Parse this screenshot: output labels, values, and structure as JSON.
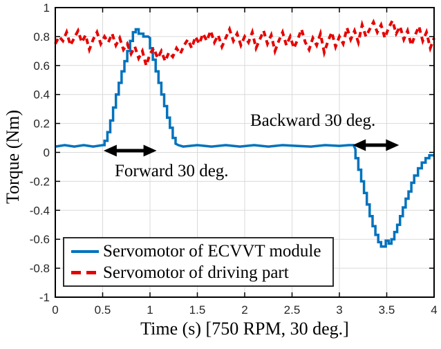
{
  "figure": {
    "ylabel": "Torque (Nm)",
    "xlabel": "Time (s) [750 RPM, 30 deg.]"
  },
  "annotations": {
    "forward": "Forward 30 deg.",
    "backward": "Backward 30 deg."
  },
  "legend": {
    "items": [
      {
        "label": "Servomotor of ECVVT module",
        "color": "#0072BD",
        "style": "solid"
      },
      {
        "label": "Servomotor of driving part",
        "color": "#E60000",
        "style": "dashed"
      }
    ]
  },
  "chart_data": {
    "type": "line",
    "title": "",
    "xlabel": "Time (s) [750 RPM, 30 deg.]",
    "ylabel": "Torque (Nm)",
    "xlim": [
      0,
      4
    ],
    "ylim": [
      -1,
      1
    ],
    "xticks": [
      0,
      0.5,
      1,
      1.5,
      2,
      2.5,
      3,
      3.5,
      4
    ],
    "xtick_labels": [
      "0",
      "0.5",
      "1",
      "1.5",
      "2",
      "2.5",
      "3",
      "3.5",
      "4"
    ],
    "yticks": [
      -1,
      -0.8,
      -0.6,
      -0.4,
      -0.2,
      0,
      0.2,
      0.4,
      0.6,
      0.8,
      1
    ],
    "ytick_labels": [
      "-1",
      "-0.8",
      "-0.6",
      "-0.4",
      "-0.2",
      "0",
      "0.2",
      "0.4",
      "0.6",
      "0.8",
      "1"
    ],
    "grid": true,
    "legend_position": "lower-left",
    "style": {
      "blue": "#0072BD",
      "red": "#E60000",
      "grid_color": "#d9d9d9",
      "axis_color": "#000000",
      "tick_text_color": "#262626",
      "annotation_arrow_color": "#000000"
    },
    "arrows": [
      {
        "name": "forward-range-arrow",
        "x1": 0.51,
        "x2": 1.07,
        "y": 0.012
      },
      {
        "name": "backward-range-arrow",
        "x1": 3.14,
        "x2": 3.63,
        "y": 0.05
      }
    ],
    "series": [
      {
        "name": "Servomotor of ECVVT module",
        "color": "#0072BD",
        "style": "solid",
        "width": 3.5,
        "points": [
          [
            0,
            0.04
          ],
          [
            0.1,
            0.05
          ],
          [
            0.2,
            0.04
          ],
          [
            0.3,
            0.05
          ],
          [
            0.4,
            0.04
          ],
          [
            0.5,
            0.05
          ],
          [
            0.52,
            0.05
          ],
          [
            0.52,
            0.08
          ],
          [
            0.55,
            0.08
          ],
          [
            0.55,
            0.14
          ],
          [
            0.58,
            0.14
          ],
          [
            0.58,
            0.22
          ],
          [
            0.61,
            0.22
          ],
          [
            0.61,
            0.31
          ],
          [
            0.64,
            0.31
          ],
          [
            0.64,
            0.4
          ],
          [
            0.67,
            0.4
          ],
          [
            0.67,
            0.48
          ],
          [
            0.7,
            0.48
          ],
          [
            0.7,
            0.56
          ],
          [
            0.73,
            0.56
          ],
          [
            0.73,
            0.63
          ],
          [
            0.76,
            0.63
          ],
          [
            0.76,
            0.7
          ],
          [
            0.79,
            0.7
          ],
          [
            0.79,
            0.77
          ],
          [
            0.82,
            0.77
          ],
          [
            0.82,
            0.83
          ],
          [
            0.85,
            0.83
          ],
          [
            0.85,
            0.85
          ],
          [
            0.88,
            0.85
          ],
          [
            0.88,
            0.82
          ],
          [
            0.93,
            0.82
          ],
          [
            0.93,
            0.8
          ],
          [
            0.98,
            0.8
          ],
          [
            1.0,
            0.79
          ],
          [
            1.0,
            0.72
          ],
          [
            1.03,
            0.72
          ],
          [
            1.03,
            0.64
          ],
          [
            1.06,
            0.64
          ],
          [
            1.06,
            0.56
          ],
          [
            1.09,
            0.56
          ],
          [
            1.09,
            0.48
          ],
          [
            1.12,
            0.48
          ],
          [
            1.12,
            0.4
          ],
          [
            1.15,
            0.4
          ],
          [
            1.15,
            0.32
          ],
          [
            1.18,
            0.32
          ],
          [
            1.18,
            0.24
          ],
          [
            1.21,
            0.24
          ],
          [
            1.21,
            0.17
          ],
          [
            1.24,
            0.17
          ],
          [
            1.24,
            0.1
          ],
          [
            1.27,
            0.1
          ],
          [
            1.27,
            0.06
          ],
          [
            1.3,
            0.05
          ],
          [
            1.35,
            0.04
          ],
          [
            1.5,
            0.05
          ],
          [
            1.65,
            0.04
          ],
          [
            1.8,
            0.05
          ],
          [
            1.95,
            0.04
          ],
          [
            2.1,
            0.05
          ],
          [
            2.25,
            0.04
          ],
          [
            2.4,
            0.05
          ],
          [
            2.55,
            0.045
          ],
          [
            2.7,
            0.04
          ],
          [
            2.85,
            0.05
          ],
          [
            3.0,
            0.045
          ],
          [
            3.1,
            0.05
          ],
          [
            3.15,
            0.05
          ],
          [
            3.17,
            0.02
          ],
          [
            3.17,
            -0.04
          ],
          [
            3.2,
            -0.04
          ],
          [
            3.2,
            -0.12
          ],
          [
            3.23,
            -0.12
          ],
          [
            3.23,
            -0.2
          ],
          [
            3.26,
            -0.2
          ],
          [
            3.26,
            -0.28
          ],
          [
            3.29,
            -0.28
          ],
          [
            3.29,
            -0.36
          ],
          [
            3.32,
            -0.36
          ],
          [
            3.32,
            -0.44
          ],
          [
            3.35,
            -0.44
          ],
          [
            3.35,
            -0.51
          ],
          [
            3.38,
            -0.51
          ],
          [
            3.38,
            -0.57
          ],
          [
            3.41,
            -0.57
          ],
          [
            3.41,
            -0.62
          ],
          [
            3.44,
            -0.62
          ],
          [
            3.44,
            -0.65
          ],
          [
            3.49,
            -0.65
          ],
          [
            3.49,
            -0.61
          ],
          [
            3.52,
            -0.61
          ],
          [
            3.52,
            -0.63
          ],
          [
            3.55,
            -0.63
          ],
          [
            3.55,
            -0.6
          ],
          [
            3.58,
            -0.6
          ],
          [
            3.58,
            -0.55
          ],
          [
            3.61,
            -0.55
          ],
          [
            3.61,
            -0.5
          ],
          [
            3.64,
            -0.5
          ],
          [
            3.64,
            -0.44
          ],
          [
            3.67,
            -0.44
          ],
          [
            3.67,
            -0.38
          ],
          [
            3.7,
            -0.38
          ],
          [
            3.7,
            -0.32
          ],
          [
            3.73,
            -0.32
          ],
          [
            3.73,
            -0.27
          ],
          [
            3.76,
            -0.27
          ],
          [
            3.76,
            -0.21
          ],
          [
            3.79,
            -0.21
          ],
          [
            3.79,
            -0.16
          ],
          [
            3.83,
            -0.16
          ],
          [
            3.83,
            -0.11
          ],
          [
            3.87,
            -0.11
          ],
          [
            3.87,
            -0.07
          ],
          [
            3.91,
            -0.07
          ],
          [
            3.91,
            -0.04
          ],
          [
            3.95,
            -0.04
          ],
          [
            3.95,
            -0.02
          ],
          [
            4.0,
            -0.02
          ]
        ]
      },
      {
        "name": "Servomotor of driving part",
        "color": "#E60000",
        "style": "dashed",
        "width": 4,
        "x_start": 0,
        "x_step": 0.04,
        "values": [
          0.75,
          0.8,
          0.77,
          0.83,
          0.74,
          0.79,
          0.84,
          0.76,
          0.81,
          0.71,
          0.78,
          0.83,
          0.75,
          0.8,
          0.76,
          0.82,
          0.74,
          0.79,
          0.71,
          0.75,
          0.68,
          0.73,
          0.65,
          0.7,
          0.6,
          0.68,
          0.72,
          0.65,
          0.7,
          0.63,
          0.69,
          0.66,
          0.72,
          0.68,
          0.74,
          0.78,
          0.72,
          0.8,
          0.75,
          0.82,
          0.77,
          0.84,
          0.76,
          0.81,
          0.73,
          0.79,
          0.85,
          0.77,
          0.82,
          0.74,
          0.8,
          0.76,
          0.83,
          0.72,
          0.78,
          0.84,
          0.75,
          0.81,
          0.7,
          0.77,
          0.83,
          0.74,
          0.8,
          0.72,
          0.78,
          0.85,
          0.76,
          0.71,
          0.79,
          0.74,
          0.82,
          0.69,
          0.77,
          0.83,
          0.73,
          0.8,
          0.75,
          0.86,
          0.78,
          0.84,
          0.76,
          0.88,
          0.8,
          0.85,
          0.9,
          0.83,
          0.88,
          0.79,
          0.86,
          0.91,
          0.82,
          0.87,
          0.78,
          0.84,
          0.74,
          0.81,
          0.87,
          0.77,
          0.83,
          0.72,
          0.79
        ]
      }
    ]
  }
}
